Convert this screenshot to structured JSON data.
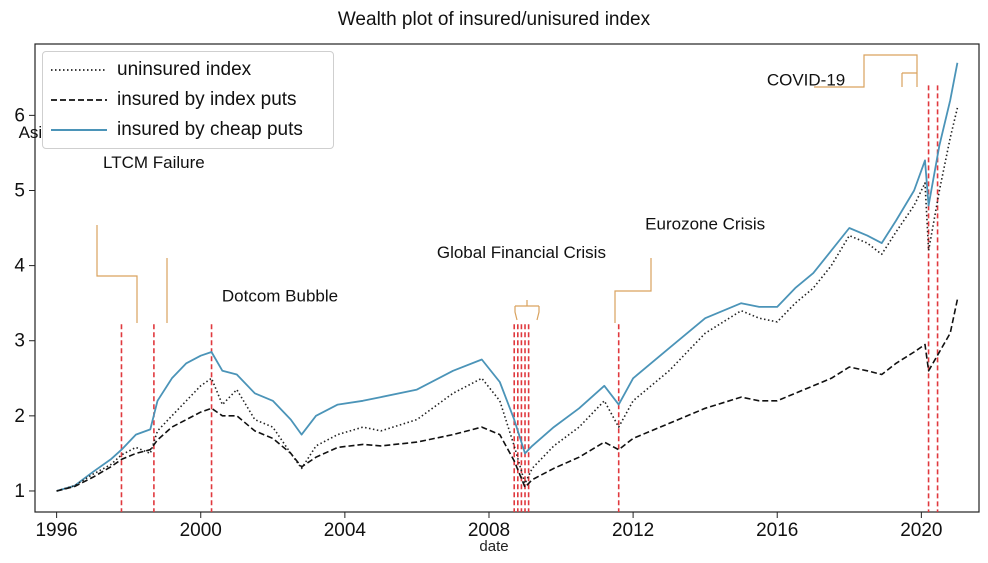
{
  "chart_data": {
    "type": "line",
    "title": "Wealth plot of insured/unisured index",
    "xlabel": "date",
    "ylabel": "",
    "xlim": [
      1995.4,
      2021.6
    ],
    "ylim": [
      0.72,
      6.95
    ],
    "xticks": [
      1996,
      2000,
      2004,
      2008,
      2012,
      2016,
      2020
    ],
    "yticks": [
      1,
      2,
      3,
      4,
      5,
      6
    ],
    "legend_position": "top-left",
    "colors": {
      "uninsured": "#222222",
      "index_puts": "#111111",
      "cheap_puts": "#4b94b8",
      "crisis_lines": "#e0393e",
      "annotation_connector": "#d9a25e"
    },
    "series": [
      {
        "name": "uninsured index",
        "style": "dotted",
        "x": [
          1996.0,
          1996.5,
          1997.0,
          1997.5,
          1997.8,
          1998.2,
          1998.6,
          1998.8,
          1999.2,
          1999.6,
          2000.0,
          2000.3,
          2000.6,
          2001.0,
          2001.5,
          2002.0,
          2002.5,
          2002.8,
          2003.2,
          2003.8,
          2004.5,
          2005.0,
          2006.0,
          2007.0,
          2007.8,
          2008.3,
          2008.7,
          2009.0,
          2009.2,
          2009.8,
          2010.5,
          2011.2,
          2011.6,
          2012.0,
          2013.0,
          2014.0,
          2015.0,
          2015.5,
          2016.0,
          2016.5,
          2017.0,
          2017.5,
          2018.0,
          2018.5,
          2018.9,
          2019.3,
          2019.8,
          2020.1,
          2020.2,
          2020.5,
          2020.8,
          2021.0
        ],
        "values": [
          1.0,
          1.07,
          1.22,
          1.35,
          1.48,
          1.58,
          1.5,
          1.8,
          2.0,
          2.2,
          2.4,
          2.5,
          2.15,
          2.35,
          1.95,
          1.85,
          1.5,
          1.3,
          1.6,
          1.75,
          1.85,
          1.8,
          1.95,
          2.3,
          2.5,
          2.2,
          1.6,
          1.1,
          1.3,
          1.6,
          1.85,
          2.2,
          1.85,
          2.2,
          2.6,
          3.1,
          3.4,
          3.3,
          3.25,
          3.5,
          3.7,
          4.0,
          4.4,
          4.3,
          4.15,
          4.45,
          4.8,
          5.1,
          4.2,
          5.0,
          5.7,
          6.1
        ]
      },
      {
        "name": "insured by index puts",
        "style": "dashed",
        "x": [
          1996.0,
          1996.5,
          1997.0,
          1997.5,
          1997.8,
          1998.2,
          1998.6,
          1998.8,
          1999.2,
          1999.6,
          2000.0,
          2000.3,
          2000.6,
          2001.0,
          2001.5,
          2002.0,
          2002.5,
          2002.8,
          2003.2,
          2003.8,
          2004.5,
          2005.0,
          2006.0,
          2007.0,
          2007.8,
          2008.3,
          2008.7,
          2009.0,
          2009.2,
          2009.8,
          2010.5,
          2011.2,
          2011.6,
          2012.0,
          2013.0,
          2014.0,
          2015.0,
          2015.5,
          2016.0,
          2016.5,
          2017.0,
          2017.5,
          2018.0,
          2018.5,
          2018.9,
          2019.3,
          2019.8,
          2020.1,
          2020.2,
          2020.5,
          2020.8,
          2021.0
        ],
        "values": [
          1.0,
          1.06,
          1.18,
          1.32,
          1.42,
          1.5,
          1.55,
          1.68,
          1.85,
          1.95,
          2.05,
          2.1,
          2.0,
          2.0,
          1.8,
          1.7,
          1.5,
          1.32,
          1.45,
          1.58,
          1.62,
          1.6,
          1.65,
          1.75,
          1.85,
          1.75,
          1.4,
          1.05,
          1.15,
          1.3,
          1.45,
          1.65,
          1.55,
          1.7,
          1.9,
          2.1,
          2.25,
          2.2,
          2.2,
          2.3,
          2.4,
          2.5,
          2.65,
          2.6,
          2.55,
          2.7,
          2.85,
          2.95,
          2.6,
          2.85,
          3.1,
          3.55
        ]
      },
      {
        "name": "insured by cheap puts",
        "style": "solid",
        "x": [
          1996.0,
          1996.5,
          1997.0,
          1997.5,
          1997.8,
          1998.2,
          1998.6,
          1998.8,
          1999.2,
          1999.6,
          2000.0,
          2000.3,
          2000.6,
          2001.0,
          2001.5,
          2002.0,
          2002.5,
          2002.8,
          2003.2,
          2003.8,
          2004.5,
          2005.0,
          2006.0,
          2007.0,
          2007.8,
          2008.3,
          2008.7,
          2009.0,
          2009.2,
          2009.8,
          2010.5,
          2011.2,
          2011.6,
          2012.0,
          2013.0,
          2014.0,
          2015.0,
          2015.5,
          2016.0,
          2016.5,
          2017.0,
          2017.5,
          2018.0,
          2018.5,
          2018.9,
          2019.3,
          2019.8,
          2020.1,
          2020.2,
          2020.5,
          2020.8,
          2021.0
        ],
        "values": [
          1.0,
          1.07,
          1.25,
          1.42,
          1.55,
          1.75,
          1.82,
          2.2,
          2.5,
          2.7,
          2.8,
          2.85,
          2.6,
          2.55,
          2.3,
          2.2,
          1.95,
          1.75,
          2.0,
          2.15,
          2.2,
          2.25,
          2.35,
          2.6,
          2.75,
          2.45,
          1.95,
          1.5,
          1.6,
          1.85,
          2.1,
          2.4,
          2.15,
          2.5,
          2.9,
          3.3,
          3.5,
          3.45,
          3.45,
          3.7,
          3.9,
          4.2,
          4.5,
          4.4,
          4.3,
          4.6,
          5.0,
          5.4,
          4.8,
          5.6,
          6.2,
          6.7
        ]
      }
    ],
    "crisis_lines": [
      {
        "x": 1997.8,
        "top": 3.22
      },
      {
        "x": 1998.7,
        "top": 3.22
      },
      {
        "x": 2000.3,
        "top": 3.22
      },
      {
        "x": 2008.7,
        "top": 3.22
      },
      {
        "x": 2008.8,
        "top": 3.22
      },
      {
        "x": 2008.9,
        "top": 3.22
      },
      {
        "x": 2009.0,
        "top": 3.22
      },
      {
        "x": 2009.1,
        "top": 3.22
      },
      {
        "x": 2011.6,
        "top": 3.22
      },
      {
        "x": 2020.2,
        "top": 6.4
      },
      {
        "x": 2020.45,
        "top": 6.4
      }
    ],
    "annotations": [
      {
        "label": "Asian Financial Crisis",
        "text_x": 1997.2,
        "text_y": 5.7
      },
      {
        "label": "LTCM Failure",
        "text_x": 1998.7,
        "text_y": 5.3
      },
      {
        "label": "Dotcom Bubble",
        "text_x": 2002.2,
        "text_y": 3.52
      },
      {
        "label": "Global Financial Crisis",
        "text_x": 2008.9,
        "text_y": 4.1
      },
      {
        "label": "Eurozone Crisis",
        "text_x": 2014.0,
        "text_y": 4.48
      },
      {
        "label": "COVID-19",
        "text_x": 2016.8,
        "text_y": 6.4
      }
    ]
  }
}
